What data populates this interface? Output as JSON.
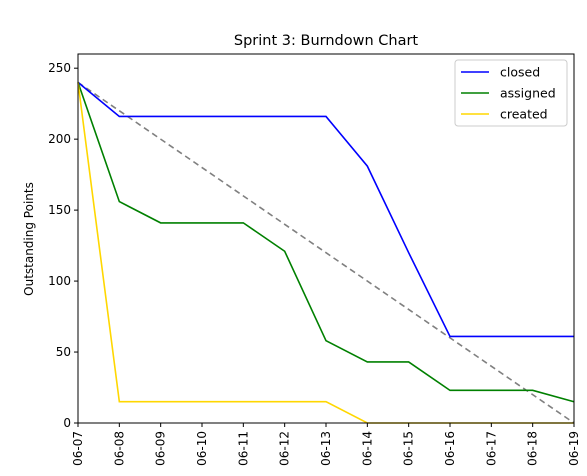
{
  "chart_data": {
    "type": "line",
    "title": "Sprint 3: Burndown Chart",
    "xlabel": "",
    "ylabel": "Outstanding Points",
    "x": [
      "06-07",
      "06-08",
      "06-09",
      "06-10",
      "06-11",
      "06-12",
      "06-13",
      "06-14",
      "06-15",
      "06-16",
      "06-17",
      "06-18",
      "06-19"
    ],
    "ylim": [
      0,
      260
    ],
    "yticks": [
      0,
      50,
      100,
      150,
      200,
      250
    ],
    "grid": false,
    "legend_position": "upper right",
    "series": [
      {
        "name": "closed",
        "color": "#0000ff",
        "style": "solid",
        "values": [
          240,
          216,
          216,
          216,
          216,
          216,
          216,
          181,
          120,
          61,
          61,
          61,
          61
        ]
      },
      {
        "name": "assigned",
        "color": "#008000",
        "style": "solid",
        "values": [
          240,
          156,
          141,
          141,
          141,
          121,
          58,
          43,
          43,
          23,
          23,
          23,
          15
        ]
      },
      {
        "name": "created",
        "color": "#ffd700",
        "style": "solid",
        "values": [
          240,
          15,
          15,
          15,
          15,
          15,
          15,
          0,
          0,
          0,
          0,
          0,
          0
        ]
      }
    ],
    "ideal": {
      "color": "#808080",
      "style": "dashed",
      "start": 240,
      "end": 0
    }
  }
}
